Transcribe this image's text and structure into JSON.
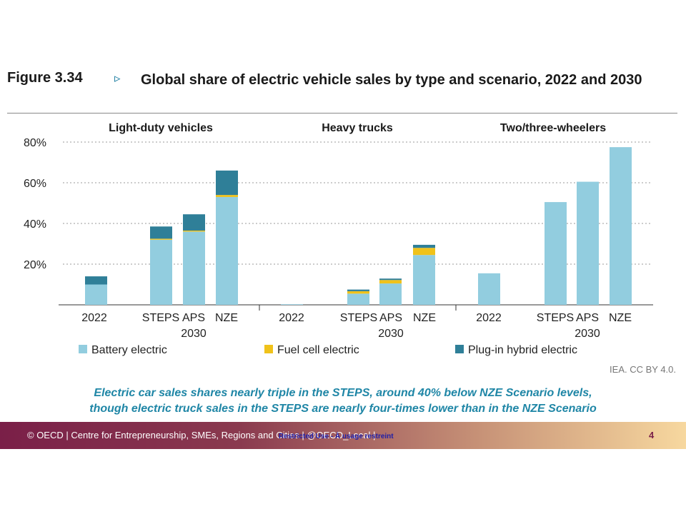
{
  "figure": {
    "label": "Figure 3.34",
    "arrow": "▹",
    "title": "Global share of electric vehicle sales by type and scenario, 2022 and 2030"
  },
  "credit": "IEA. CC BY 4.0.",
  "caption": {
    "line1": "Electric car sales shares nearly triple in the STEPS, around 40% below NZE Scenario levels,",
    "line2": "though electric truck sales in the STEPS are nearly four-times lower than in the NZE Scenario"
  },
  "footer": {
    "text": "© OECD | Centre for Entrepreneurship, SMEs, Regions and Cities | @OECD_Local |",
    "tag": "Restricted Use - À usage restreint",
    "page": "4"
  },
  "colors": {
    "battery": "#92cddf",
    "fuel_cell": "#f0c21a",
    "plugin": "#2f7f98",
    "caption": "#1f86a6",
    "grid": "#999999"
  },
  "chart_data": {
    "type": "bar",
    "stacked": true,
    "ylim": [
      0,
      80
    ],
    "yticks": [
      "20%",
      "40%",
      "60%",
      "80%"
    ],
    "grid": true,
    "legend_position": "bottom",
    "panels": [
      {
        "title": "Light-duty vehicles",
        "categories": [
          "2022",
          "STEPS",
          "APS",
          "NZE"
        ],
        "group_label": "2030",
        "series": [
          {
            "name": "Battery electric",
            "values": [
              10,
              32,
              36,
              53
            ]
          },
          {
            "name": "Fuel cell electric",
            "values": [
              0,
              0.5,
              0.5,
              1
            ]
          },
          {
            "name": "Plug-in hybrid electric",
            "values": [
              4,
              6,
              8,
              12
            ]
          }
        ]
      },
      {
        "title": "Heavy trucks",
        "categories": [
          "2022",
          "STEPS",
          "APS",
          "NZE"
        ],
        "group_label": "2030",
        "series": [
          {
            "name": "Battery electric",
            "values": [
              0.3,
              5.5,
              10.5,
              24.5
            ]
          },
          {
            "name": "Fuel cell electric",
            "values": [
              0,
              1.2,
              1.7,
              3.5
            ]
          },
          {
            "name": "Plug-in hybrid electric",
            "values": [
              0,
              0.8,
              0.7,
              1.5
            ]
          }
        ]
      },
      {
        "title": "Two/three-wheelers",
        "categories": [
          "2022",
          "STEPS",
          "APS",
          "NZE"
        ],
        "group_label": "2030",
        "series": [
          {
            "name": "Battery electric",
            "values": [
              15.5,
              50.5,
              60.5,
              77.5
            ]
          },
          {
            "name": "Fuel cell electric",
            "values": [
              0,
              0,
              0,
              0
            ]
          },
          {
            "name": "Plug-in hybrid electric",
            "values": [
              0,
              0,
              0,
              0
            ]
          }
        ]
      }
    ],
    "legend": [
      "Battery electric",
      "Fuel cell electric",
      "Plug-in hybrid electric"
    ]
  }
}
